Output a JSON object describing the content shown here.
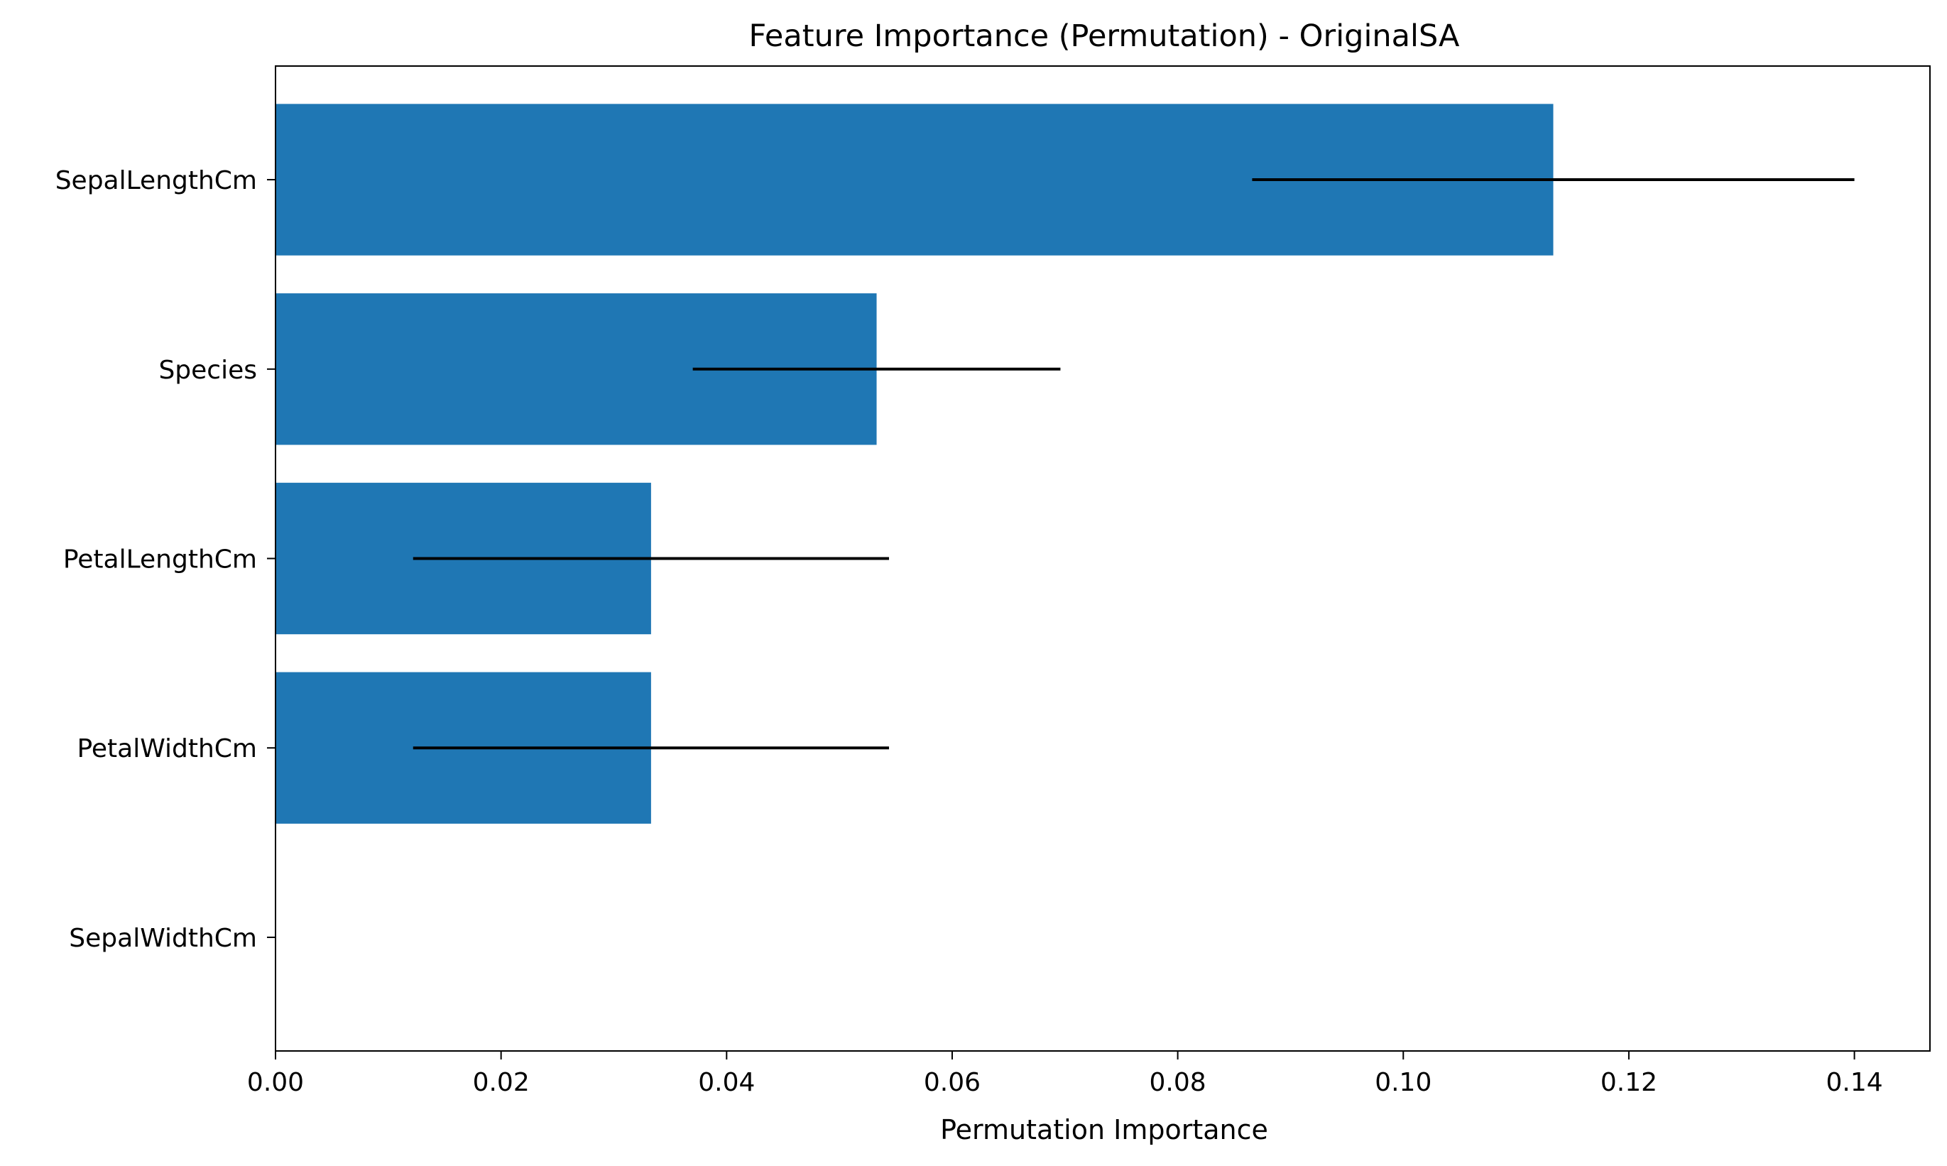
{
  "chart_data": {
    "type": "bar",
    "orientation": "horizontal",
    "title": "Feature Importance (Permutation) - OriginalSA",
    "xlabel": "Permutation Importance",
    "ylabel": "",
    "categories": [
      "SepalLengthCm",
      "Species",
      "PetalLengthCm",
      "PetalWidthCm",
      "SepalWidthCm"
    ],
    "values": [
      0.1133,
      0.0533,
      0.0333,
      0.0333,
      0.0
    ],
    "errors": [
      0.0267,
      0.0163,
      0.0211,
      0.0211,
      0.0
    ],
    "xlim": [
      0.0,
      0.1467
    ],
    "xticks": [
      0.0,
      0.02,
      0.04,
      0.06,
      0.08,
      0.1,
      0.12,
      0.14
    ],
    "xtick_labels": [
      "0.00",
      "0.02",
      "0.04",
      "0.06",
      "0.08",
      "0.10",
      "0.12",
      "0.14"
    ],
    "grid": false,
    "bar_color": "#1f77b4",
    "error_color": "#000000"
  }
}
